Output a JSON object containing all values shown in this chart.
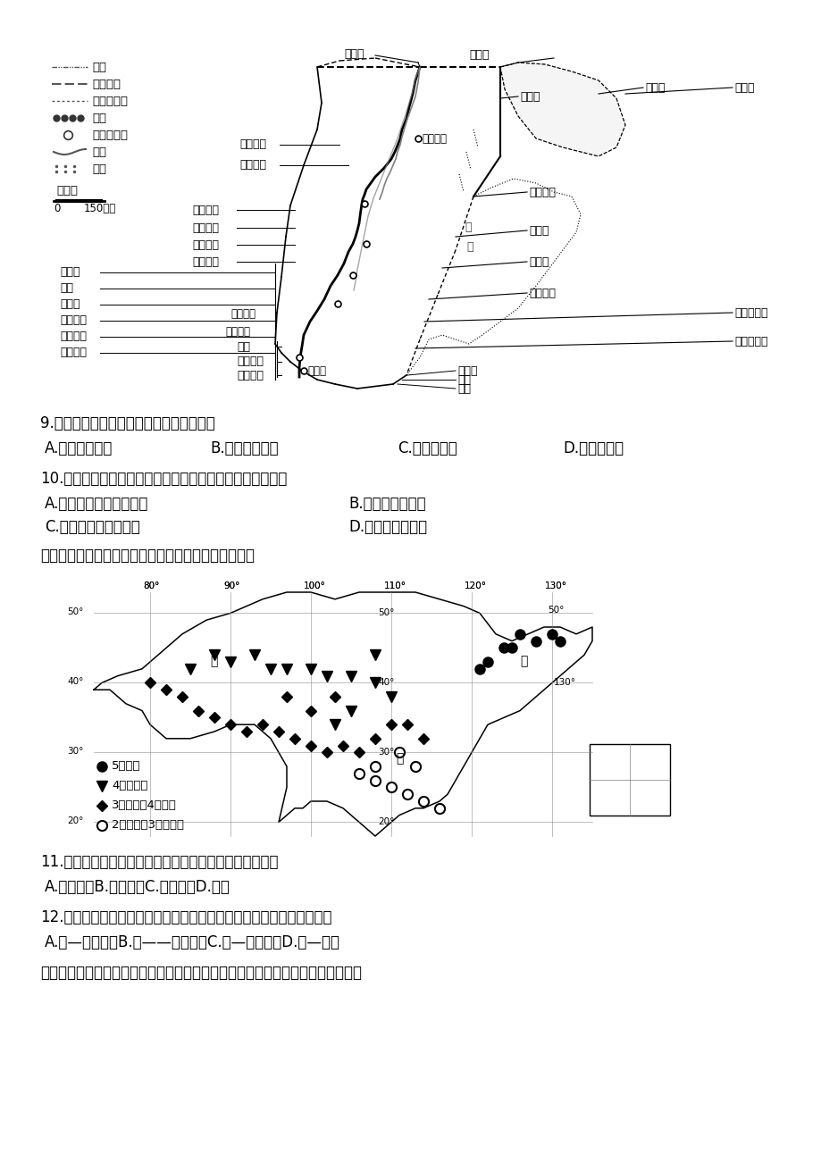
{
  "bg_color": "#ffffff",
  "legend_entries": [
    {
      "sym": "dash_dot",
      "label": "国界"
    },
    {
      "sym": "dash",
      "label": "未定国界"
    },
    {
      "sym": "dot",
      "label": "军事分界线"
    },
    {
      "sym": "filled_circles",
      "label": "城市"
    },
    {
      "sym": "open_circle",
      "label": "建设项目地"
    },
    {
      "sym": "curve",
      "label": "河流"
    },
    {
      "sym": "dots_fill",
      "label": "沙漠"
    }
  ],
  "q9_text": "9.我国企业投资的项目主要集中于（　　）",
  "q9_A": "A.采矿和制造业",
  "q9_B": "B.金融和零售业",
  "q9_C": "C.交通和能源",
  "q9_D": "D.教育和医疗",
  "q10_text": "10.影响我国企业投资项目地域分布的最主要因素是（　　）",
  "q10_A": "A.市场规模和劳动力数量",
  "q10_B": "B.区位和资源禅赋",
  "q10_C": "C.基础设施和生态环境",
  "q10_D": "D.政策和文化传统",
  "intro_text": "读我国部分地区春耕春播时间示意图，回答下面小题。",
  "map2_legend": [
    {
      "sym": "filled_circle",
      "label": "5月上旬"
    },
    {
      "sym": "filled_tri_down",
      "label": "4月中下旬"
    },
    {
      "sym": "filled_diamond",
      "label": "3月下旬至4月上旬"
    },
    {
      "sym": "open_circle",
      "label": "2月下旬至3月中上旬"
    }
  ],
  "q11_text": "11.影响我国春耕春播时间南北差异的主导因素是（　　）",
  "q11_opts": "A.光照　　B.气温　　C.降水　　D.土壤",
  "q12_text": "12.甲、乙、丙、丁四地与春季播种的主要农作物对应正确的是（　　）",
  "q12_opts": "A.甲—水稻　　B.乙——甘蔗　　C.丙—水稻　　D.丁—甜菜",
  "q13_intro": "下图为我国不同行业国民经济产出对气象条件敏感性排序示意图。完成下面小题。"
}
